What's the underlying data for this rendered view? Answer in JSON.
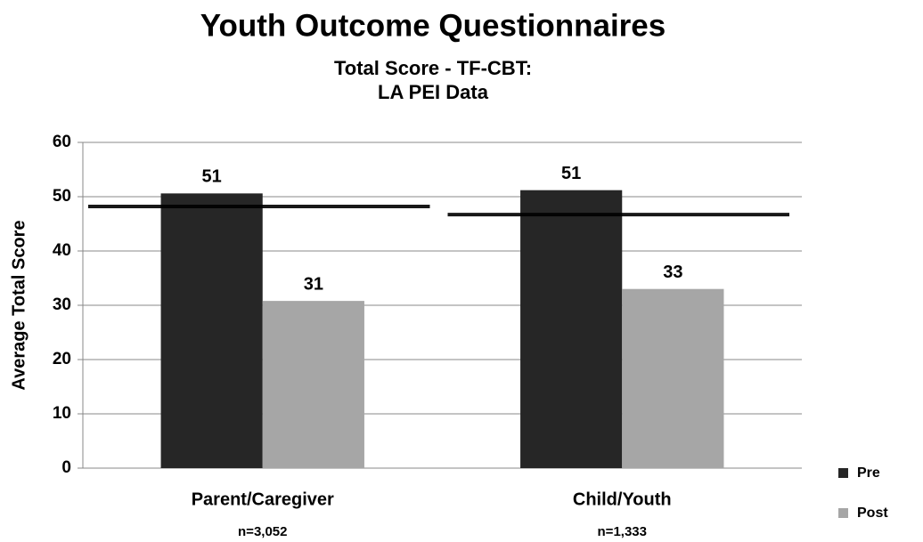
{
  "chart_data": {
    "type": "bar",
    "title": "Youth Outcome Questionnaires",
    "subtitle": [
      "Total Score - TF-CBT:",
      "LA PEI Data"
    ],
    "y_label": "Average Total Score",
    "categories": [
      "Parent/Caregiver",
      "Child/Youth"
    ],
    "category_notes": [
      "n=3,052",
      "n=1,333"
    ],
    "series": [
      {
        "name": "Pre",
        "color": "#262626",
        "values": [
          50.6,
          51.2
        ],
        "value_labels": [
          "51",
          "51"
        ]
      },
      {
        "name": "Post",
        "color": "#a6a6a6",
        "values": [
          30.8,
          33.0
        ],
        "value_labels": [
          "31",
          "33"
        ]
      }
    ],
    "cutoffs": [
      48.2,
      46.7
    ],
    "ylim": [
      0,
      60
    ],
    "yticks": [
      0,
      10,
      20,
      30,
      40,
      50,
      60
    ],
    "grid": true,
    "legend": "right"
  }
}
